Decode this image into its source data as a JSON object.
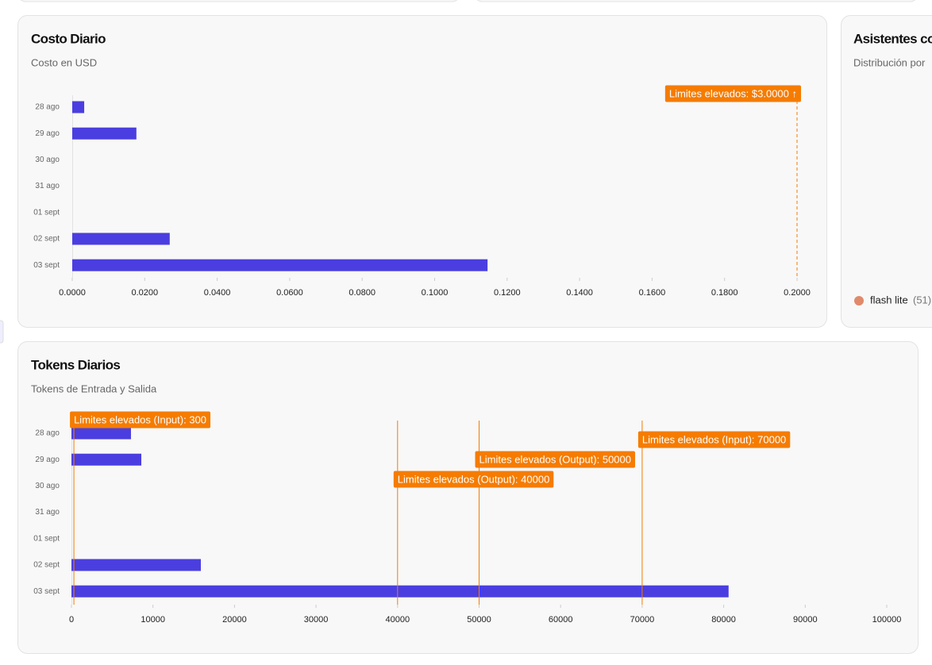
{
  "chart_data": [
    {
      "type": "bar",
      "orientation": "horizontal",
      "title": "Costo Diario",
      "subtitle": "Costo en USD",
      "categories": [
        "28 ago",
        "29 ago",
        "30 ago",
        "31 ago",
        "01 sept",
        "02 sept",
        "03 sept"
      ],
      "values": [
        0.0033,
        0.0177,
        0,
        0,
        0,
        0.0269,
        0.1146
      ],
      "color": "#4a3ee0",
      "xlim": [
        0,
        0.2
      ],
      "xticks": [
        {
          "value": 0,
          "label": "0.0000"
        },
        {
          "value": 0.02,
          "label": "0.0200"
        },
        {
          "value": 0.04,
          "label": "0.0400"
        },
        {
          "value": 0.06,
          "label": "0.0600"
        },
        {
          "value": 0.08,
          "label": "0.0800"
        },
        {
          "value": 0.1,
          "label": "0.1000"
        },
        {
          "value": 0.12,
          "label": "0.1200"
        },
        {
          "value": 0.14,
          "label": "0.1400"
        },
        {
          "value": 0.16,
          "label": "0.1600"
        },
        {
          "value": 0.18,
          "label": "0.1800"
        },
        {
          "value": 0.2,
          "label": "0.2000"
        }
      ],
      "annotations": [
        "Limites elevados: $3.0000 ↑"
      ],
      "annotation_color": "#f57c00"
    },
    {
      "type": "bar",
      "orientation": "horizontal",
      "title": "Tokens Diarios",
      "subtitle": "Tokens de Entrada y Salida",
      "categories": [
        "28 ago",
        "29 ago",
        "30 ago",
        "31 ago",
        "01 sept",
        "02 sept",
        "03 sept"
      ],
      "values": [
        7300,
        8570,
        0,
        0,
        0,
        15870,
        80600
      ],
      "color": "#4a3ee0",
      "xlim": [
        0,
        100000
      ],
      "xticks": [
        0,
        10000,
        20000,
        30000,
        40000,
        50000,
        60000,
        70000,
        80000,
        90000,
        100000
      ],
      "reference_lines": [
        {
          "value": 300,
          "label": "Limites elevados (Input): 300"
        },
        {
          "value": 70000,
          "label": "Limites elevados (Input): 70000"
        },
        {
          "value": 50000,
          "label": "Limites elevados (Output): 50000"
        },
        {
          "value": 40000,
          "label": "Limites elevados (Output): 40000"
        }
      ],
      "annotation_color": "#f57c00"
    }
  ],
  "side_card": {
    "title": "Asistentes co",
    "subtitle": "Distribución por",
    "legend": [
      {
        "name": "flash lite",
        "count_label": "(51)",
        "color": "#e08a6a"
      }
    ]
  }
}
